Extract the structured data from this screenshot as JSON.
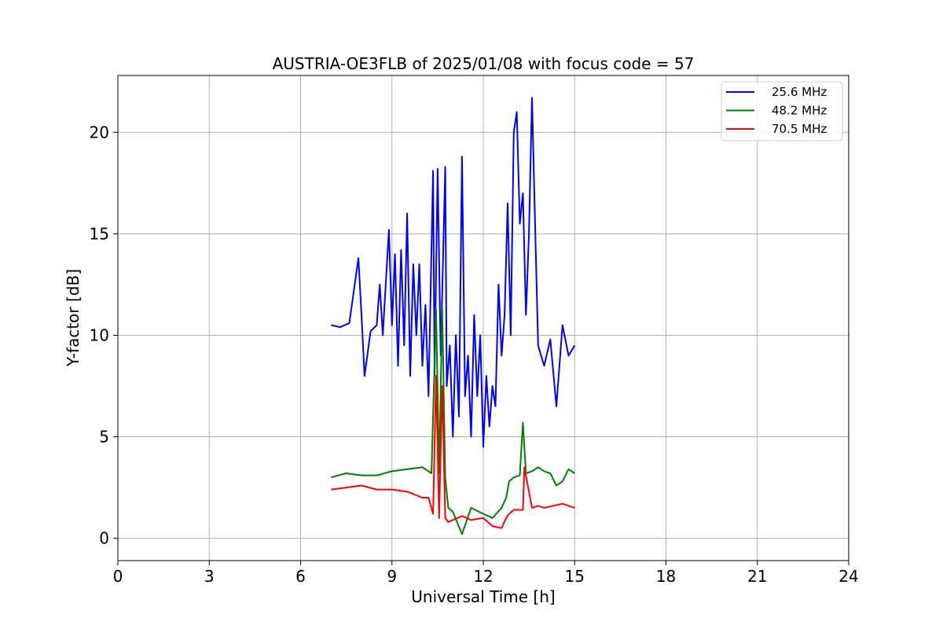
{
  "chart_data": {
    "type": "line",
    "title": "AUSTRIA-OE3FLB of 2025/01/08 with focus code = 57",
    "xlabel": "Universal Time [h]",
    "ylabel": "Y-factor [dB]",
    "xlim": [
      0,
      24
    ],
    "ylim": [
      -1.1,
      22.8
    ],
    "xticks": [
      0,
      3,
      6,
      9,
      12,
      15,
      18,
      21,
      24
    ],
    "yticks": [
      0,
      5,
      10,
      15,
      20
    ],
    "grid": true,
    "legend_position": "top-right",
    "series": [
      {
        "name": "25.6 MHz",
        "color": "#0000ff",
        "x": [
          7.0,
          7.3,
          7.6,
          7.9,
          8.0,
          8.1,
          8.3,
          8.5,
          8.6,
          8.7,
          8.9,
          9.0,
          9.1,
          9.2,
          9.3,
          9.4,
          9.5,
          9.6,
          9.7,
          9.8,
          9.9,
          10.0,
          10.1,
          10.2,
          10.35,
          10.4,
          10.5,
          10.6,
          10.75,
          10.8,
          10.9,
          11.0,
          11.1,
          11.2,
          11.3,
          11.4,
          11.5,
          11.6,
          11.7,
          11.8,
          11.9,
          12.0,
          12.1,
          12.2,
          12.3,
          12.4,
          12.5,
          12.6,
          12.7,
          12.8,
          12.9,
          13.0,
          13.1,
          13.2,
          13.3,
          13.4,
          13.5,
          13.6,
          13.7,
          13.8,
          13.9,
          14.0,
          14.2,
          14.4,
          14.6,
          14.8,
          15.0
        ],
        "y": [
          10.5,
          10.4,
          10.6,
          13.8,
          11.0,
          8.0,
          10.2,
          10.5,
          12.5,
          10.0,
          15.2,
          10.5,
          14.0,
          8.5,
          14.2,
          9.5,
          16.0,
          8.0,
          13.5,
          10.0,
          13.5,
          8.5,
          11.5,
          7.0,
          18.1,
          8.0,
          18.2,
          9.0,
          18.3,
          7.5,
          9.5,
          5.0,
          10.0,
          6.0,
          18.8,
          7.0,
          9.0,
          5.0,
          11.0,
          7.0,
          10.0,
          4.5,
          8.0,
          5.5,
          7.5,
          6.5,
          12.5,
          9.0,
          11.0,
          16.5,
          10.0,
          20.0,
          21.0,
          15.5,
          17.0,
          11.0,
          15.0,
          21.7,
          15.5,
          9.5,
          9.0,
          8.5,
          9.8,
          6.5,
          10.5,
          9.0,
          9.5
        ]
      },
      {
        "name": "48.2 MHz",
        "color": "#008000",
        "x": [
          7.0,
          7.5,
          8.0,
          8.5,
          9.0,
          9.5,
          10.0,
          10.3,
          10.45,
          10.55,
          10.65,
          10.75,
          10.85,
          11.0,
          11.3,
          11.6,
          12.0,
          12.3,
          12.6,
          12.75,
          12.85,
          13.0,
          13.2,
          13.3,
          13.4,
          13.6,
          13.8,
          14.0,
          14.2,
          14.4,
          14.6,
          14.8,
          15.0
        ],
        "y": [
          3.0,
          3.2,
          3.1,
          3.1,
          3.3,
          3.4,
          3.5,
          3.2,
          11.3,
          3.2,
          11.4,
          3.0,
          1.5,
          1.3,
          0.2,
          1.5,
          1.2,
          1.0,
          1.5,
          2.0,
          2.8,
          3.0,
          3.1,
          5.7,
          3.2,
          3.3,
          3.5,
          3.3,
          3.2,
          2.6,
          2.8,
          3.4,
          3.2
        ]
      },
      {
        "name": "70.5 MHz",
        "color": "#ff0000",
        "x": [
          7.0,
          7.5,
          8.0,
          8.5,
          9.0,
          9.5,
          10.0,
          10.2,
          10.35,
          10.45,
          10.55,
          10.65,
          10.75,
          10.85,
          11.0,
          11.3,
          11.6,
          12.0,
          12.3,
          12.6,
          12.75,
          12.85,
          13.0,
          13.3,
          13.35,
          13.6,
          13.8,
          14.0,
          14.3,
          14.6,
          15.0
        ],
        "y": [
          2.4,
          2.5,
          2.6,
          2.4,
          2.4,
          2.3,
          2.0,
          2.0,
          1.2,
          8.0,
          1.0,
          7.5,
          1.0,
          0.8,
          0.9,
          1.1,
          0.9,
          1.0,
          0.6,
          0.5,
          1.0,
          1.2,
          1.4,
          1.4,
          3.5,
          1.5,
          1.6,
          1.5,
          1.6,
          1.7,
          1.5
        ]
      }
    ]
  }
}
